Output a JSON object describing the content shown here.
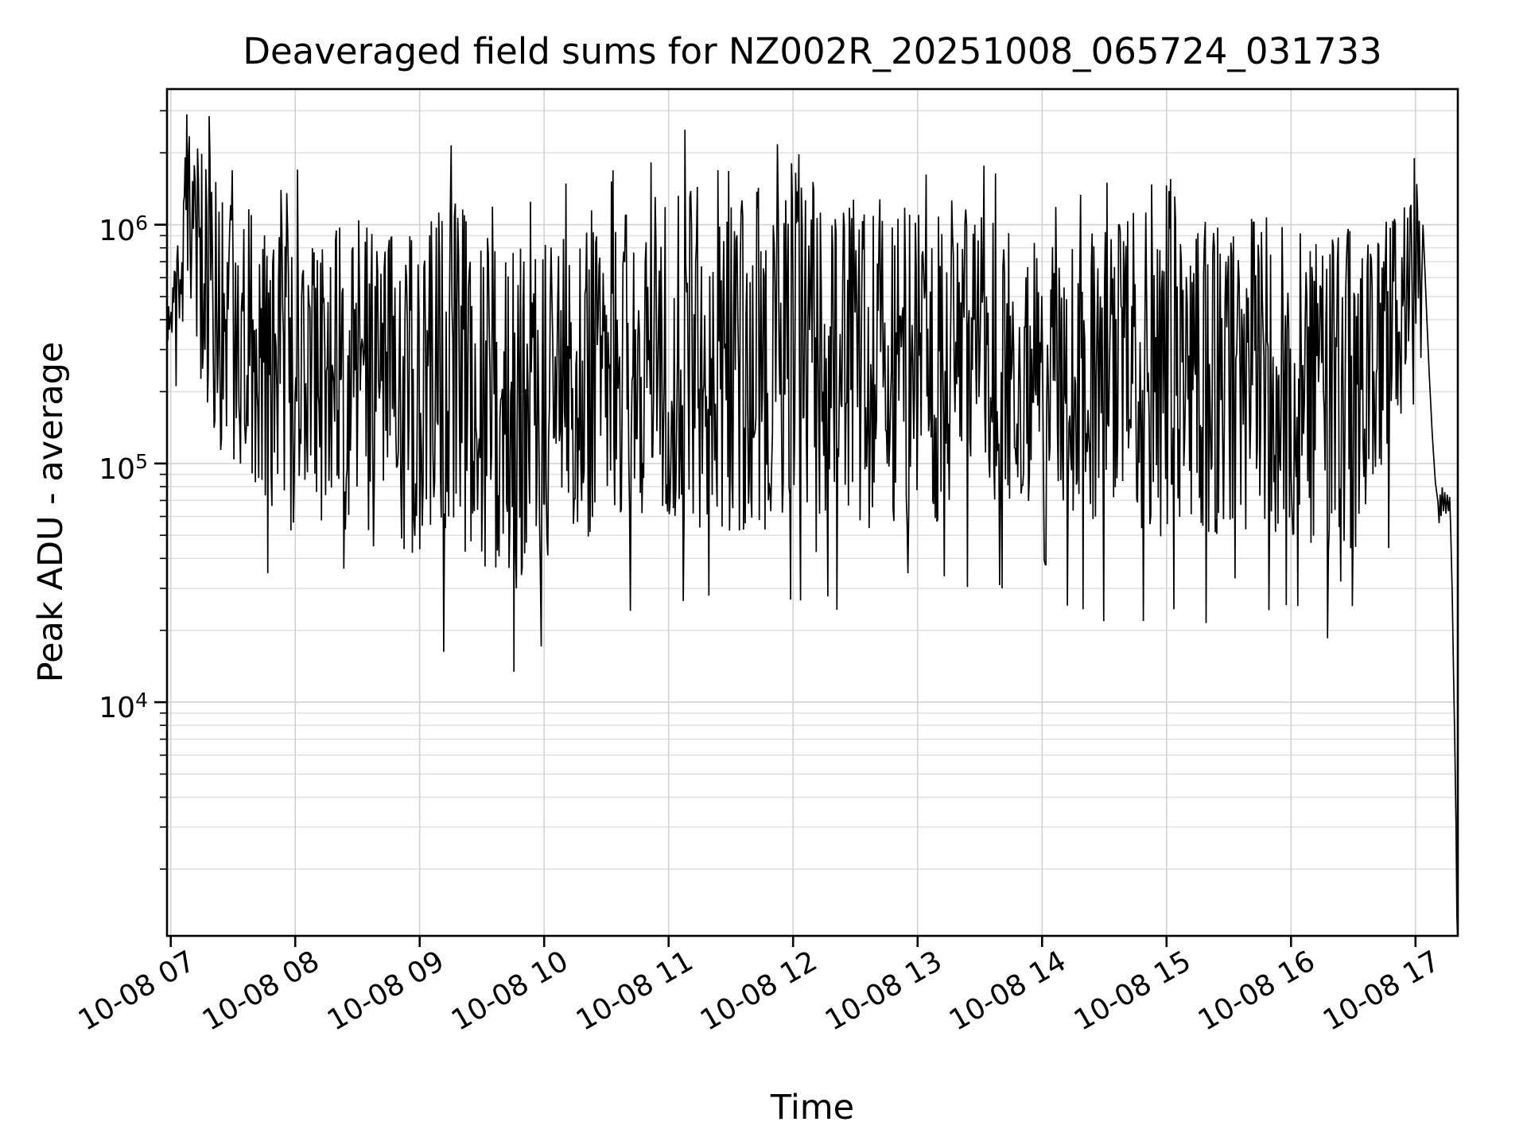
{
  "chart_data": {
    "type": "line",
    "title": "Deaveraged field sums for NZ002R_20251008_065724_031733",
    "xlabel": "Time",
    "ylabel": "Peak ADU - average",
    "y_scale": "log",
    "ylim": [
      1050,
      3700000
    ],
    "xlim_hours": [
      6.97,
      17.34
    ],
    "grid": "both",
    "legend": "none",
    "line_color": "#000000",
    "major_grid_color": "#d2d2d2",
    "minor_grid_color": "#dedede",
    "background_color": "#ffffff",
    "x_ticks": [
      {
        "hour": 7,
        "label": "10-08 07"
      },
      {
        "hour": 8,
        "label": "10-08 08"
      },
      {
        "hour": 9,
        "label": "10-08 09"
      },
      {
        "hour": 10,
        "label": "10-08 10"
      },
      {
        "hour": 11,
        "label": "10-08 11"
      },
      {
        "hour": 12,
        "label": "10-08 12"
      },
      {
        "hour": 13,
        "label": "10-08 13"
      },
      {
        "hour": 14,
        "label": "10-08 14"
      },
      {
        "hour": 15,
        "label": "10-08 15"
      },
      {
        "hour": 16,
        "label": "10-08 16"
      },
      {
        "hour": 17,
        "label": "10-08 17"
      }
    ],
    "y_ticks": [
      {
        "value": 10000,
        "base": "10",
        "exp": "4"
      },
      {
        "value": 100000,
        "base": "10",
        "exp": "5"
      },
      {
        "value": 1000000,
        "base": "10",
        "exp": "6"
      }
    ],
    "series": {
      "name": "deaveraged-field-sums",
      "n_points": 1520,
      "noise_seed": 1733,
      "envelope_log10": [
        [
          6.97,
          5.48,
          5.62
        ],
        [
          7.02,
          5.5,
          5.78
        ],
        [
          7.07,
          5.55,
          6.15
        ],
        [
          7.12,
          5.58,
          6.44
        ],
        [
          7.2,
          5.42,
          6.42
        ],
        [
          7.3,
          5.22,
          6.32
        ],
        [
          7.42,
          5.02,
          6.12
        ],
        [
          7.55,
          4.9,
          6.06
        ],
        [
          7.7,
          4.82,
          6.1
        ],
        [
          7.9,
          4.72,
          6.16
        ],
        [
          8.1,
          4.7,
          6.18
        ],
        [
          8.35,
          4.72,
          6.06
        ],
        [
          8.6,
          4.65,
          6.0
        ],
        [
          8.85,
          4.6,
          5.98
        ],
        [
          9.1,
          4.58,
          6.04
        ],
        [
          9.3,
          4.6,
          6.14
        ],
        [
          9.55,
          4.55,
          5.96
        ],
        [
          9.8,
          4.52,
          5.9
        ],
        [
          10.0,
          4.55,
          5.96
        ],
        [
          10.2,
          4.65,
          6.05
        ],
        [
          10.45,
          4.72,
          6.1
        ],
        [
          10.7,
          4.75,
          6.12
        ],
        [
          11.0,
          4.72,
          6.14
        ],
        [
          11.15,
          4.75,
          6.18
        ],
        [
          11.3,
          4.72,
          6.16
        ],
        [
          11.6,
          4.7,
          6.15
        ],
        [
          11.9,
          4.72,
          6.18
        ],
        [
          12.2,
          4.75,
          6.18
        ],
        [
          12.5,
          4.72,
          6.15
        ],
        [
          12.8,
          4.72,
          6.1
        ],
        [
          13.1,
          4.75,
          6.14
        ],
        [
          13.4,
          4.78,
          6.1
        ],
        [
          13.7,
          4.72,
          6.05
        ],
        [
          13.95,
          4.85,
          5.96
        ],
        [
          14.05,
          4.92,
          5.92
        ],
        [
          14.2,
          4.78,
          6.0
        ],
        [
          14.5,
          4.72,
          6.06
        ],
        [
          14.8,
          4.7,
          6.1
        ],
        [
          15.1,
          4.68,
          6.05
        ],
        [
          15.4,
          4.7,
          6.0
        ],
        [
          15.7,
          4.72,
          6.05
        ],
        [
          16.0,
          4.7,
          6.0
        ],
        [
          16.3,
          4.62,
          5.98
        ],
        [
          16.55,
          4.65,
          6.0
        ],
        [
          16.75,
          4.9,
          6.02
        ],
        [
          16.9,
          5.2,
          6.06
        ],
        [
          17.0,
          5.55,
          6.2
        ],
        [
          17.05,
          5.65,
          6.15
        ]
      ],
      "notable_peaks": [
        [
          7.13,
          2900000
        ],
        [
          7.31,
          2850000
        ],
        [
          8.02,
          1700000
        ],
        [
          9.25,
          2150000
        ],
        [
          11.13,
          2500000
        ],
        [
          12.02,
          1650000
        ],
        [
          16.99,
          1900000
        ]
      ],
      "deep_lows": [
        [
          9.78,
          30000
        ],
        [
          13.68,
          30000
        ],
        [
          15.55,
          33000
        ],
        [
          16.4,
          32000
        ]
      ],
      "tail_log10": [
        [
          17.06,
          6.0
        ],
        [
          17.075,
          5.82
        ],
        [
          17.09,
          5.62
        ],
        [
          17.11,
          5.38
        ],
        [
          17.135,
          5.12
        ],
        [
          17.16,
          4.92
        ],
        [
          17.18,
          4.84
        ],
        [
          17.19,
          4.75
        ],
        [
          17.198,
          4.87
        ],
        [
          17.206,
          4.78
        ],
        [
          17.215,
          4.9
        ],
        [
          17.225,
          4.8
        ],
        [
          17.235,
          4.88
        ],
        [
          17.245,
          4.79
        ],
        [
          17.255,
          4.87
        ],
        [
          17.265,
          4.8
        ],
        [
          17.275,
          4.86
        ],
        [
          17.283,
          4.72
        ],
        [
          17.295,
          4.45
        ],
        [
          17.305,
          4.15
        ],
        [
          17.315,
          3.85
        ],
        [
          17.325,
          3.5
        ],
        [
          17.333,
          3.1
        ],
        [
          17.337,
          3.03
        ]
      ]
    }
  }
}
